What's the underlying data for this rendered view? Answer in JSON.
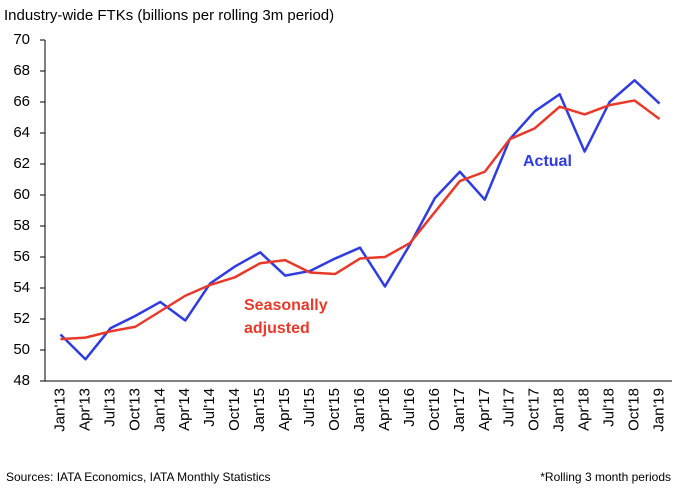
{
  "chart_data": {
    "type": "line",
    "title": "Industry-wide FTKs (billions per rolling 3m period)",
    "categories": [
      "Jan'13",
      "Apr'13",
      "Jul'13",
      "Oct'13",
      "Jan'14",
      "Apr'14",
      "Jul'14",
      "Oct'14",
      "Jan'15",
      "Apr'15",
      "Jul'15",
      "Oct'15",
      "Jan'16",
      "Apr'16",
      "Jul'16",
      "Oct'16",
      "Jan'17",
      "Apr'17",
      "Jul'17",
      "Oct'17",
      "Jan'18",
      "Apr'18",
      "Jul'18",
      "Oct'18",
      "Jan'19"
    ],
    "series": [
      {
        "name": "Actual",
        "color": "#2f3ce0",
        "values": [
          51.0,
          49.4,
          51.4,
          52.2,
          53.1,
          51.9,
          54.3,
          55.4,
          56.3,
          54.8,
          55.1,
          55.9,
          56.6,
          54.1,
          56.8,
          59.8,
          61.5,
          59.7,
          63.6,
          65.4,
          66.5,
          62.8,
          66.0,
          67.4,
          65.9
        ]
      },
      {
        "name": "Seasonally adjusted",
        "color": "#e8392a",
        "values": [
          50.7,
          50.8,
          51.2,
          51.5,
          52.5,
          53.5,
          54.2,
          54.7,
          55.6,
          55.8,
          55.0,
          54.9,
          55.9,
          56.0,
          56.9,
          58.9,
          60.9,
          61.5,
          63.6,
          64.3,
          65.7,
          65.2,
          65.8,
          66.1,
          64.9
        ]
      }
    ],
    "ylim": [
      48,
      70
    ],
    "yticks": [
      48,
      50,
      52,
      54,
      56,
      58,
      60,
      62,
      64,
      66,
      68,
      70
    ],
    "grid": false,
    "source": "Sources: IATA Economics, IATA Monthly Statistics",
    "note": "*Rolling 3 month periods"
  }
}
